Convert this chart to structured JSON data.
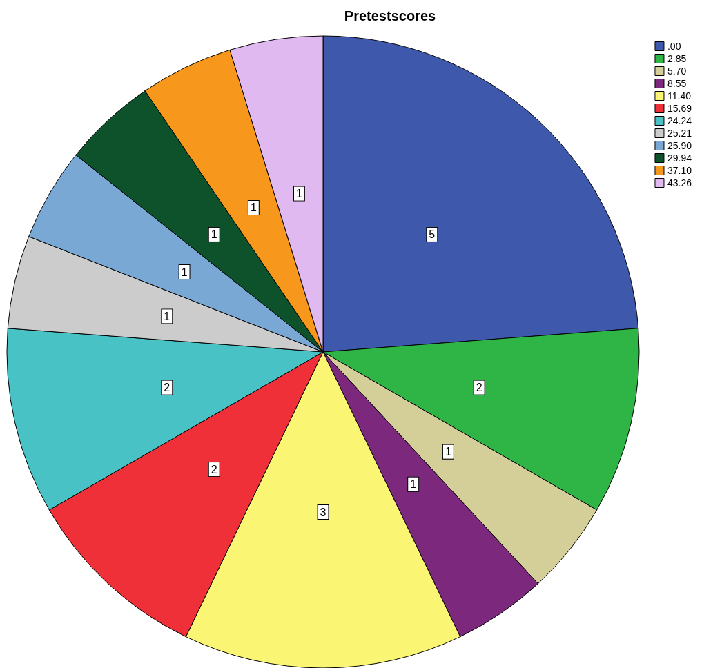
{
  "chart_data": {
    "type": "pie",
    "title": "Pretestscores",
    "categories": [
      ".00",
      "2.85",
      "5.70",
      "8.55",
      "11.40",
      "15.69",
      "24.24",
      "25.21",
      "25.90",
      "29.94",
      "37.10",
      "43.26"
    ],
    "values": [
      5,
      2,
      1,
      1,
      3,
      2,
      2,
      1,
      1,
      1,
      1,
      1
    ],
    "colors": [
      "#3e58ac",
      "#2fb546",
      "#d4ce99",
      "#7b287d",
      "#fbf574",
      "#ef3038",
      "#48c2c5",
      "#cccccc",
      "#79a8d5",
      "#0d522b",
      "#f7981d",
      "#dfb9f0"
    ],
    "data_labels": true,
    "legend": "top right"
  }
}
